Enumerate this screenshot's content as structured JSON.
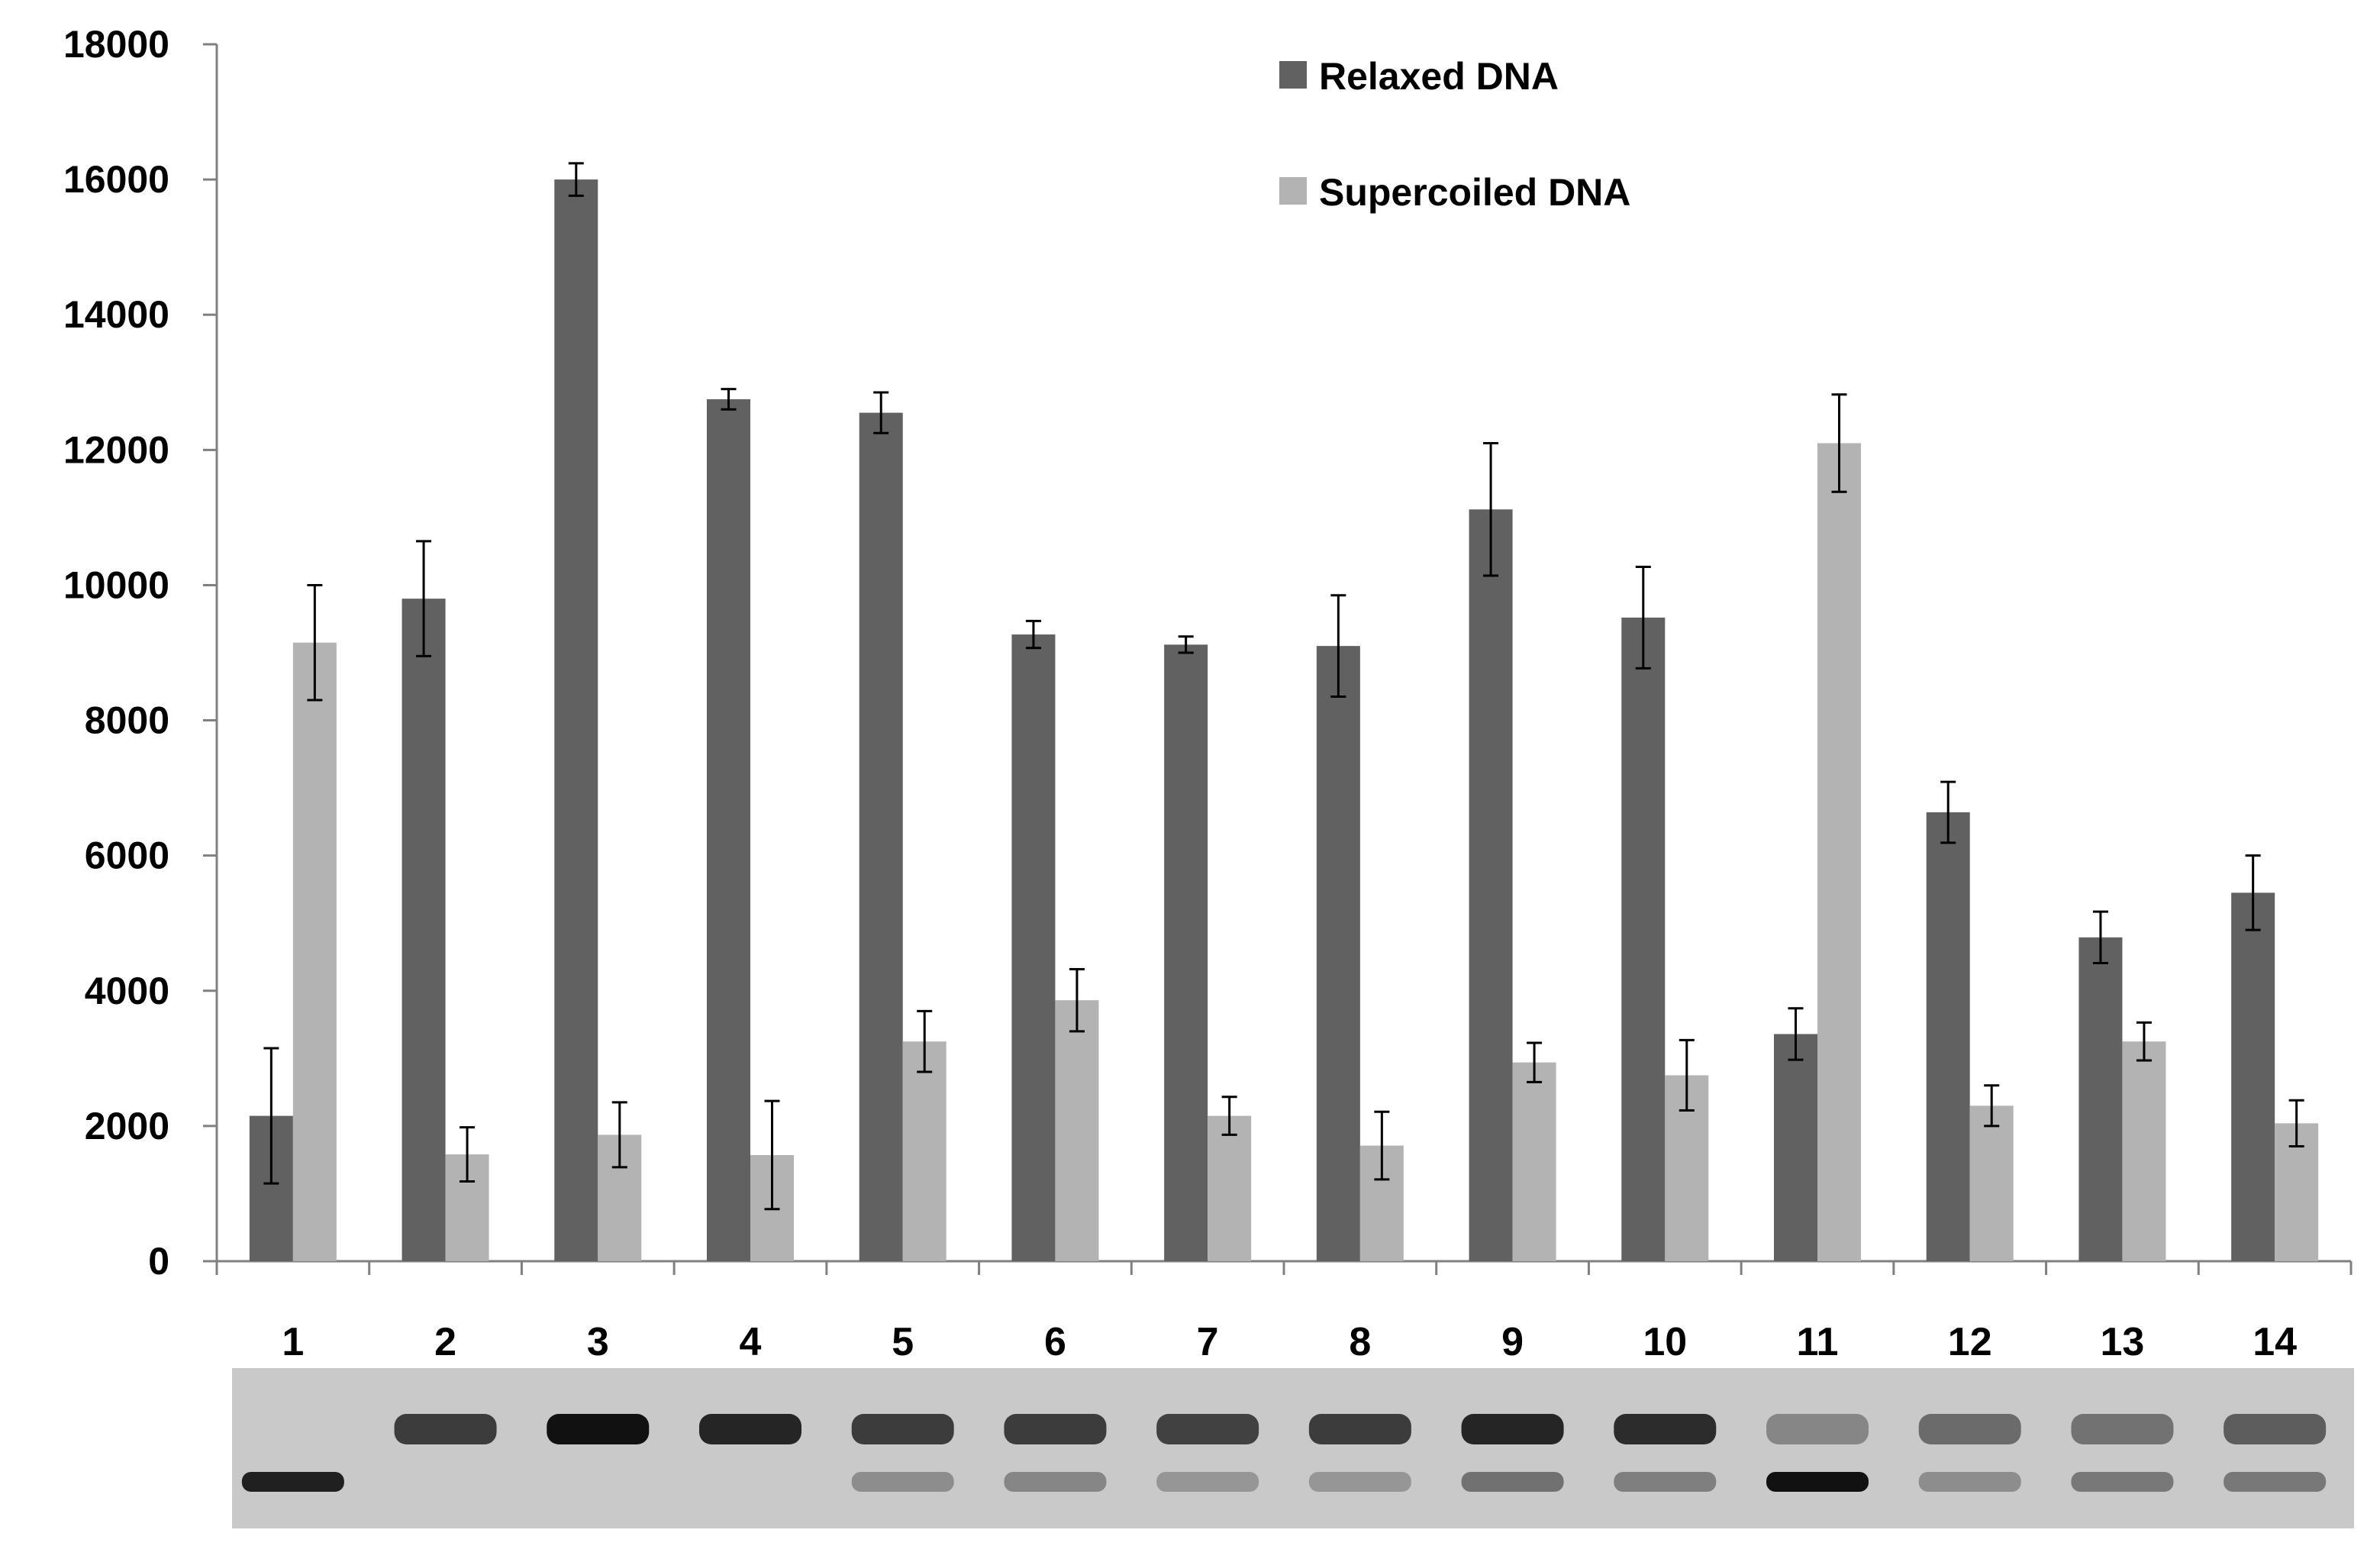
{
  "chart_data": {
    "type": "bar",
    "categories": [
      "1",
      "2",
      "3",
      "4",
      "5",
      "6",
      "7",
      "8",
      "9",
      "10",
      "11",
      "12",
      "13",
      "14"
    ],
    "series": [
      {
        "name": "Relaxed DNA",
        "color": "#616161",
        "values": [
          2150,
          9800,
          16000,
          12750,
          12550,
          9270,
          9120,
          9100,
          11120,
          9520,
          3360,
          6640,
          4790,
          5450
        ],
        "errors": [
          1000,
          850,
          240,
          150,
          300,
          200,
          120,
          750,
          980,
          750,
          380,
          450,
          380,
          550
        ]
      },
      {
        "name": "Supercoiled DNA",
        "color": "#b3b3b3",
        "values": [
          9150,
          1580,
          1870,
          1570,
          3250,
          3860,
          2150,
          1710,
          2940,
          2750,
          12100,
          2300,
          3250,
          2040
        ],
        "errors": [
          850,
          400,
          480,
          800,
          450,
          460,
          280,
          500,
          290,
          520,
          720,
          300,
          280,
          340
        ]
      }
    ],
    "title": "",
    "xlabel": "",
    "ylabel": "",
    "ylim": [
      0,
      18000
    ],
    "yticks": [
      0,
      2000,
      4000,
      6000,
      8000,
      10000,
      12000,
      14000,
      16000,
      18000
    ],
    "grid": false,
    "legend": "top-center",
    "gel_image": {
      "lanes": [
        {
          "relaxed": 0.0,
          "supercoiled": 0.9
        },
        {
          "relaxed": 0.7,
          "supercoiled": 0.0
        },
        {
          "relaxed": 1.0,
          "supercoiled": 0.0
        },
        {
          "relaxed": 0.85,
          "supercoiled": 0.0
        },
        {
          "relaxed": 0.7,
          "supercoiled": 0.15
        },
        {
          "relaxed": 0.7,
          "supercoiled": 0.2
        },
        {
          "relaxed": 0.65,
          "supercoiled": 0.1
        },
        {
          "relaxed": 0.7,
          "supercoiled": 0.1
        },
        {
          "relaxed": 0.85,
          "supercoiled": 0.35
        },
        {
          "relaxed": 0.8,
          "supercoiled": 0.25
        },
        {
          "relaxed": 0.15,
          "supercoiled": 1.0
        },
        {
          "relaxed": 0.35,
          "supercoiled": 0.15
        },
        {
          "relaxed": 0.3,
          "supercoiled": 0.3
        },
        {
          "relaxed": 0.45,
          "supercoiled": 0.3
        }
      ]
    }
  }
}
